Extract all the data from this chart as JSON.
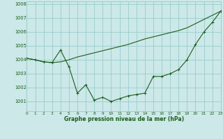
{
  "background_color": "#cce8e8",
  "grid_color": "#99cccc",
  "line_color": "#1a5c1a",
  "xlabel": "Graphe pression niveau de la mer (hPa)",
  "ylim": [
    1000.3,
    1008.2
  ],
  "xlim": [
    0,
    23
  ],
  "yticks": [
    1001,
    1002,
    1003,
    1004,
    1005,
    1006,
    1007,
    1008
  ],
  "xticks": [
    0,
    1,
    2,
    3,
    4,
    5,
    6,
    7,
    8,
    9,
    10,
    11,
    12,
    13,
    14,
    15,
    16,
    17,
    18,
    19,
    20,
    21,
    22,
    23
  ],
  "series1": {
    "x": [
      0,
      1,
      2,
      3,
      4,
      5,
      6,
      7,
      8,
      9,
      10,
      11,
      12,
      13,
      14,
      15,
      16,
      17,
      18,
      19,
      20,
      21,
      22,
      23
    ],
    "y": [
      1004.1,
      1004.0,
      1003.85,
      1003.8,
      1003.85,
      1004.0,
      1004.2,
      1004.35,
      1004.5,
      1004.65,
      1004.8,
      1004.95,
      1005.1,
      1005.3,
      1005.5,
      1005.65,
      1005.8,
      1005.95,
      1006.1,
      1006.3,
      1006.6,
      1006.9,
      1007.2,
      1007.5
    ]
  },
  "series2": {
    "x": [
      0,
      1,
      2,
      3,
      4,
      5,
      6,
      7,
      8,
      9,
      10,
      11,
      12,
      13,
      14,
      15,
      16,
      17,
      18,
      19,
      20,
      21,
      22,
      23
    ],
    "y": [
      1004.1,
      1004.0,
      1003.85,
      1003.8,
      1004.7,
      1003.5,
      1001.6,
      1002.2,
      1001.1,
      1001.3,
      1001.0,
      1001.2,
      1001.4,
      1001.5,
      1001.6,
      1002.8,
      1002.8,
      1003.0,
      1003.3,
      1004.0,
      1005.1,
      1006.0,
      1006.7,
      1007.5
    ]
  }
}
